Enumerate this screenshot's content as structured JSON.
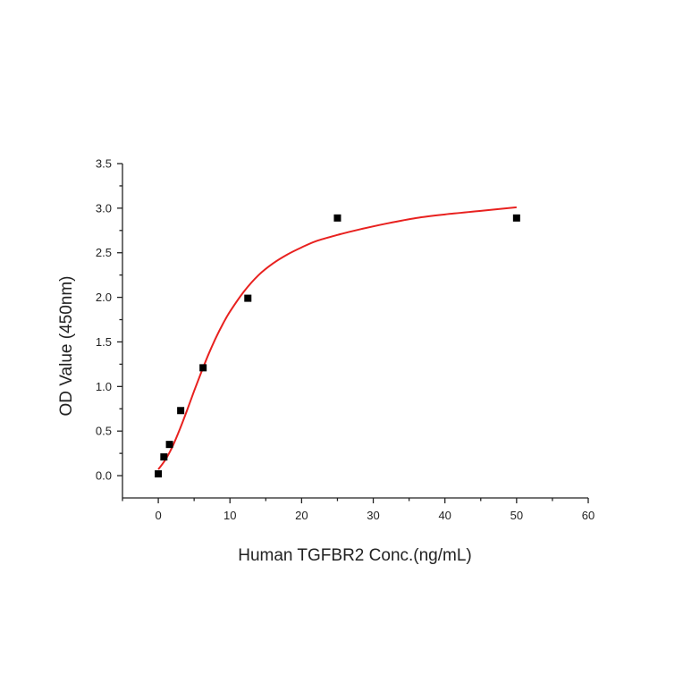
{
  "chart_data": {
    "type": "scatter",
    "title": "",
    "xlabel": "Human TGFBR2 Conc.(ng/mL)",
    "ylabel": "OD Value (450nm)",
    "xlim": [
      -5,
      60
    ],
    "ylim": [
      -0.25,
      3.5
    ],
    "x_ticks": [
      0,
      10,
      20,
      30,
      40,
      50,
      60
    ],
    "y_ticks": [
      0.0,
      0.5,
      1.0,
      1.5,
      2.0,
      2.5,
      3.0,
      3.5
    ],
    "x_tick_labels": [
      "0",
      "10",
      "20",
      "30",
      "40",
      "50",
      "60"
    ],
    "y_tick_labels": [
      "0.0",
      "0.5",
      "1.0",
      "1.5",
      "2.0",
      "2.5",
      "3.0",
      "3.5"
    ],
    "grid": false,
    "series": [
      {
        "kind": "points",
        "color": "#000000",
        "marker": "square",
        "x": [
          0,
          0.78,
          1.56,
          3.125,
          6.25,
          12.5,
          25,
          50
        ],
        "y": [
          0.02,
          0.21,
          0.35,
          0.73,
          1.21,
          1.99,
          2.89,
          2.89
        ]
      },
      {
        "kind": "fit-curve",
        "color": "#e8211f",
        "x": [
          0,
          1,
          2,
          3,
          4,
          5,
          6,
          7,
          8,
          9,
          10,
          12,
          14,
          16,
          18,
          20,
          22,
          25,
          28,
          32,
          36,
          40,
          45,
          50
        ],
        "y": [
          0.07,
          0.18,
          0.33,
          0.52,
          0.73,
          0.95,
          1.16,
          1.36,
          1.54,
          1.7,
          1.84,
          2.07,
          2.25,
          2.38,
          2.48,
          2.56,
          2.63,
          2.7,
          2.76,
          2.83,
          2.89,
          2.93,
          2.97,
          3.01
        ]
      }
    ]
  }
}
